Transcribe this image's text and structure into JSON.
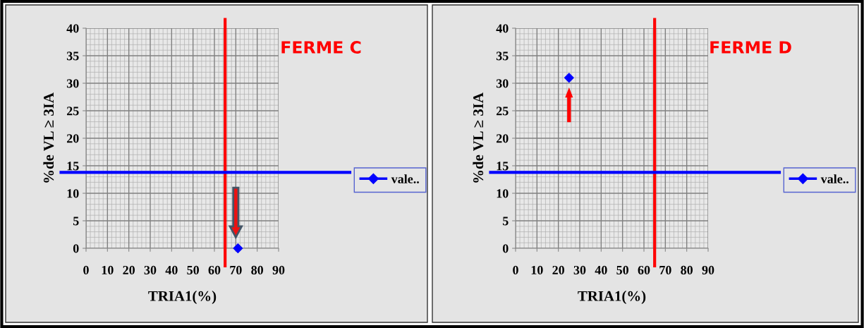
{
  "chart_data": [
    {
      "type": "scatter",
      "title": "FERME C",
      "xlabel": "TRIA1(%)",
      "ylabel": "%de VL ≥ 3IA",
      "x": [
        71
      ],
      "series": [
        {
          "name": "vale..",
          "color": "#0000ff",
          "values": [
            0
          ]
        }
      ],
      "xlim": [
        0,
        90
      ],
      "xticks": [
        0,
        10,
        20,
        30,
        40,
        50,
        60,
        70,
        80,
        90
      ],
      "ylim": [
        0,
        40
      ],
      "yticks": [
        0,
        5,
        10,
        15,
        20,
        25,
        30,
        35,
        40
      ],
      "ref_lines": [
        {
          "axis": "x",
          "value": 65,
          "color": "#ff0000"
        },
        {
          "axis": "y",
          "value": 13.8,
          "color": "#0000ff"
        }
      ],
      "grid": true,
      "legend": "right",
      "marker": "diamond"
    },
    {
      "type": "scatter",
      "title": "FERME D",
      "xlabel": "TRIA1(%)",
      "ylabel": "%de VL ≥ 3IA",
      "x": [
        25
      ],
      "series": [
        {
          "name": "vale..",
          "color": "#0000ff",
          "values": [
            31
          ]
        }
      ],
      "xlim": [
        0,
        90
      ],
      "xticks": [
        0,
        10,
        20,
        30,
        40,
        50,
        60,
        70,
        80,
        90
      ],
      "ylim": [
        0,
        40
      ],
      "yticks": [
        0,
        5,
        10,
        15,
        20,
        25,
        30,
        35,
        40
      ],
      "ref_lines": [
        {
          "axis": "x",
          "value": 65,
          "color": "#ff0000"
        },
        {
          "axis": "y",
          "value": 13.8,
          "color": "#0000ff"
        }
      ],
      "grid": true,
      "legend": "right",
      "marker": "diamond"
    }
  ]
}
